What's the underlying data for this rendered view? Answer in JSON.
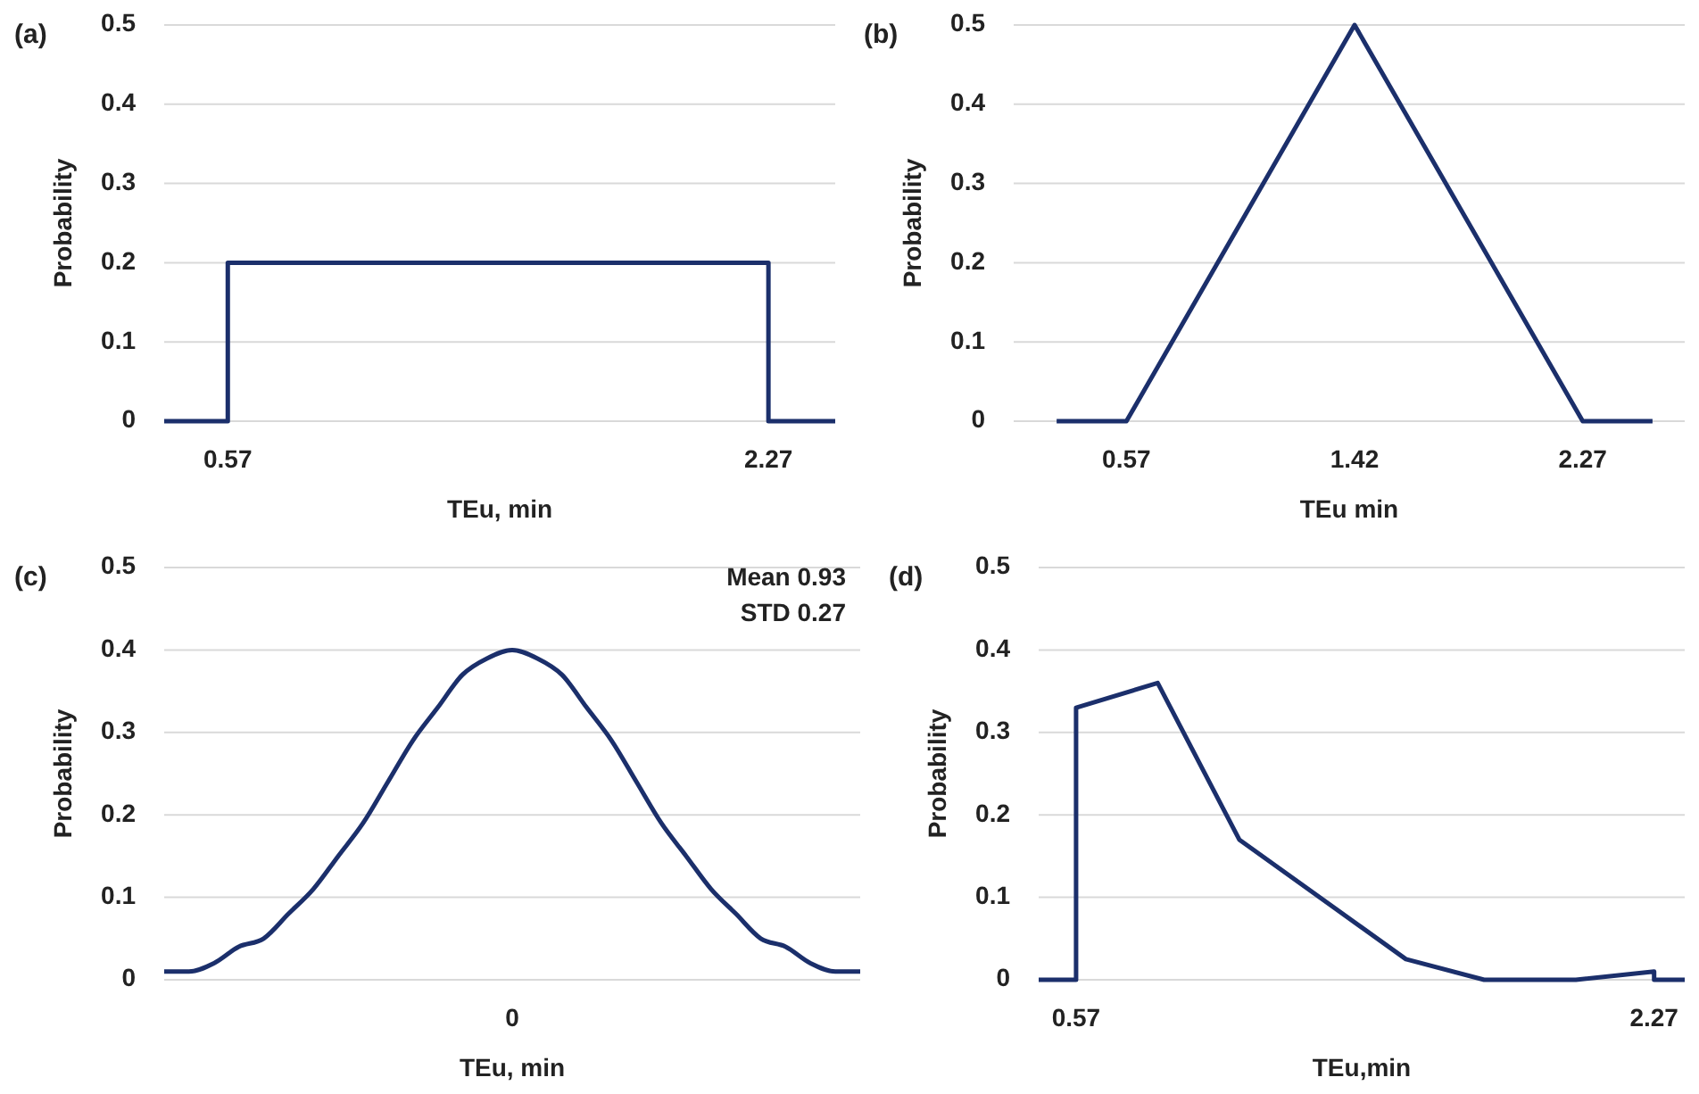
{
  "chart_data": [
    {
      "type": "line",
      "title": "(a)",
      "xlabel": "TEu, min",
      "ylabel": "Probability",
      "xlim": [
        0.37,
        2.48
      ],
      "xticks": [
        0.57,
        2.27
      ],
      "ylim": [
        0,
        0.5
      ],
      "yticks": [
        0,
        0.1,
        0.2,
        0.3,
        0.4,
        0.5
      ],
      "grid": "y",
      "series": [
        {
          "color": "#1b2f6b",
          "x": [
            0.37,
            0.57,
            0.57,
            2.27,
            2.27,
            2.48
          ],
          "values": [
            0,
            0,
            0.2,
            0.2,
            0,
            0
          ]
        }
      ]
    },
    {
      "type": "line",
      "title": "(b)",
      "xlabel": "TEu min",
      "ylabel": "Probability",
      "xlim": [
        0.15,
        2.65
      ],
      "xticks": [
        0.57,
        1.42,
        2.27
      ],
      "ylim": [
        0,
        0.5
      ],
      "yticks": [
        0,
        0.1,
        0.2,
        0.3,
        0.4,
        0.5
      ],
      "grid": "y",
      "series": [
        {
          "color": "#1b2f6b",
          "x": [
            0.31,
            0.57,
            1.42,
            2.27,
            2.53
          ],
          "values": [
            0,
            0,
            0.5,
            0,
            0
          ]
        }
      ]
    },
    {
      "type": "line",
      "title": "(c)",
      "xlabel": "TEu, min",
      "ylabel": "Probability",
      "annotations": [
        "Mean 0.93",
        "STD 0.27"
      ],
      "ylim": [
        0,
        0.5
      ],
      "yticks": [
        0,
        0.1,
        0.2,
        0.3,
        0.4,
        0.5
      ],
      "grid": "y",
      "categories": [
        null,
        null,
        null,
        null,
        null,
        null,
        null,
        null,
        null,
        null,
        null,
        null,
        null,
        null,
        "0",
        null,
        null,
        null,
        null,
        null,
        null,
        null,
        null,
        null,
        null,
        null,
        null,
        null,
        null
      ],
      "series": [
        {
          "color": "#1b2f6b",
          "values": [
            0.01,
            0.01,
            0.02,
            0.04,
            0.05,
            0.08,
            0.11,
            0.15,
            0.19,
            0.24,
            0.29,
            0.33,
            0.37,
            0.39,
            0.4,
            0.39,
            0.37,
            0.33,
            0.29,
            0.24,
            0.19,
            0.15,
            0.11,
            0.08,
            0.05,
            0.04,
            0.02,
            0.01,
            0.01
          ]
        }
      ]
    },
    {
      "type": "line",
      "title": "(d)",
      "xlabel": "TEu,min",
      "ylabel": "Probability",
      "xlim": [
        0.46,
        2.36
      ],
      "xticks": [
        0.57,
        2.27
      ],
      "ylim": [
        0,
        0.5
      ],
      "yticks": [
        0,
        0.1,
        0.2,
        0.3,
        0.4,
        0.5
      ],
      "grid": "y",
      "series": [
        {
          "color": "#1b2f6b",
          "x": [
            0.46,
            0.57,
            0.57,
            0.81,
            1.05,
            1.54,
            1.77,
            2.04,
            2.27,
            2.27,
            2.36
          ],
          "values": [
            0,
            0,
            0.33,
            0.36,
            0.17,
            0.025,
            0,
            0,
            0.01,
            0,
            0
          ]
        }
      ]
    }
  ]
}
